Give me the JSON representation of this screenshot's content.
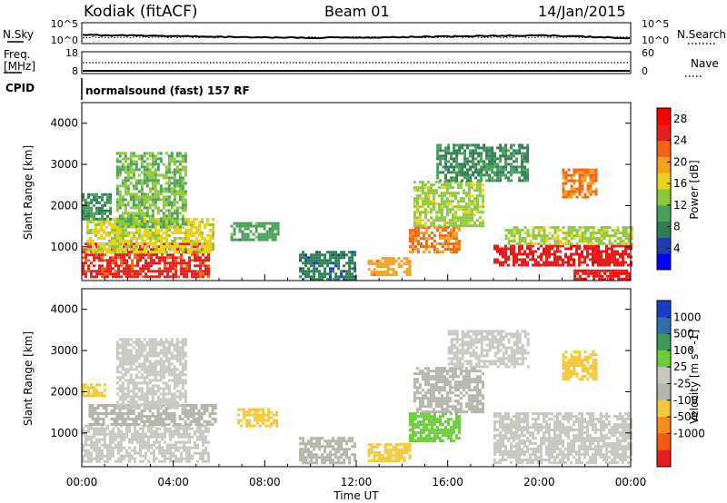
{
  "header": {
    "station": "Kodiak (fitACF)",
    "beam": "Beam 01",
    "date": "14/Jan/2015"
  },
  "top_strip": {
    "left_label": "N.Sky",
    "left_ticks": [
      "10^5",
      "10^0"
    ],
    "right_ticks": [
      "10^5",
      "10^0"
    ],
    "right_label": "N.Search"
  },
  "freq_strip": {
    "left_label_1": "Freq.",
    "left_label_2": "[MHz]",
    "left_ticks": [
      "18",
      "8"
    ],
    "right_ticks": [
      "60",
      "0"
    ],
    "right_label": "Nave"
  },
  "cpid_strip": {
    "label": "CPID",
    "text": "normalsound (fast) 157 RF"
  },
  "colors": {
    "power": [
      "#0000ff",
      "#1f3fa8",
      "#2e7d55",
      "#4aa05a",
      "#8cc83c",
      "#e8d21e",
      "#f5a01e",
      "#f06414",
      "#e61e1e",
      "#ff0000"
    ],
    "velocity": [
      "#1a3cc8",
      "#2e6eaa",
      "#3a9a5a",
      "#6ccc3c",
      "#c8c8c0",
      "#b4b4a8",
      "#f5c83c",
      "#f58c1e",
      "#f05a14",
      "#e81e1e"
    ]
  },
  "chart_data": [
    {
      "type": "heatmap",
      "title": "",
      "xlabel": "",
      "ylabel": "Slant Range [km]",
      "yticks": [
        "1000",
        "2000",
        "3000",
        "4000"
      ],
      "ylim": [
        180,
        4500
      ],
      "xticks": [
        "00:00",
        "04:00",
        "08:00",
        "12:00",
        "16:00",
        "20:00",
        "00:00"
      ],
      "colorbar": {
        "label": "Power [dB]",
        "ticks": [
          "4",
          "8",
          "12",
          "16",
          "20",
          "24",
          "28"
        ],
        "range": [
          0,
          30
        ]
      },
      "regions": [
        {
          "t0": 0.0,
          "t1": 5.5,
          "r0": 300,
          "r1": 1100,
          "value": 26
        },
        {
          "t0": 0.2,
          "t1": 5.8,
          "r0": 900,
          "r1": 1700,
          "value": 16
        },
        {
          "t0": 0.0,
          "t1": 1.2,
          "r0": 1700,
          "r1": 2300,
          "value": 8
        },
        {
          "t0": 1.5,
          "t1": 4.5,
          "r0": 1500,
          "r1": 3300,
          "value": 12
        },
        {
          "t0": 6.5,
          "t1": 8.6,
          "r0": 1200,
          "r1": 1600,
          "value": 10
        },
        {
          "t0": 9.5,
          "t1": 12.0,
          "r0": 200,
          "r1": 900,
          "value": 6
        },
        {
          "t0": 12.5,
          "t1": 14.3,
          "r0": 300,
          "r1": 750,
          "value": 20
        },
        {
          "t0": 14.3,
          "t1": 16.5,
          "r0": 900,
          "r1": 1500,
          "value": 22
        },
        {
          "t0": 14.5,
          "t1": 17.5,
          "r0": 1500,
          "r1": 2600,
          "value": 14
        },
        {
          "t0": 15.5,
          "t1": 19.5,
          "r0": 2600,
          "r1": 3500,
          "value": 8
        },
        {
          "t0": 18.0,
          "t1": 24.0,
          "r0": 550,
          "r1": 1050,
          "value": 27
        },
        {
          "t0": 18.5,
          "t1": 24.0,
          "r0": 1050,
          "r1": 1500,
          "value": 14
        },
        {
          "t0": 21.0,
          "t1": 22.5,
          "r0": 2200,
          "r1": 2900,
          "value": 22
        },
        {
          "t0": 21.5,
          "t1": 24.0,
          "r0": 200,
          "r1": 450,
          "value": 28
        }
      ]
    },
    {
      "type": "heatmap",
      "title": "",
      "xlabel": "Time UT",
      "ylabel": "Slant Range [km]",
      "yticks": [
        "1000",
        "2000",
        "3000",
        "4000"
      ],
      "ylim": [
        180,
        4500
      ],
      "xticks": [
        "00:00",
        "04:00",
        "08:00",
        "12:00",
        "16:00",
        "20:00",
        "00:00"
      ],
      "colorbar": {
        "label": "Velocity [m s^-1]",
        "ticks": [
          "1000",
          "500",
          "100",
          "25",
          "-25",
          "-100",
          "-500",
          "-1000"
        ]
      },
      "regions": [
        {
          "t0": 0.0,
          "t1": 5.5,
          "r0": 300,
          "r1": 1200,
          "value": 0
        },
        {
          "t0": 0.3,
          "t1": 5.8,
          "r0": 1200,
          "r1": 1700,
          "value": -50
        },
        {
          "t0": 0.0,
          "t1": 1.0,
          "r0": 1900,
          "r1": 2200,
          "value": -150
        },
        {
          "t0": 1.5,
          "t1": 4.5,
          "r0": 1600,
          "r1": 3300,
          "value": 10
        },
        {
          "t0": 6.8,
          "t1": 8.5,
          "r0": 1200,
          "r1": 1600,
          "value": -300
        },
        {
          "t0": 9.5,
          "t1": 12.0,
          "r0": 250,
          "r1": 900,
          "value": -40
        },
        {
          "t0": 12.5,
          "t1": 14.3,
          "r0": 350,
          "r1": 750,
          "value": -150
        },
        {
          "t0": 14.3,
          "t1": 16.5,
          "r0": 800,
          "r1": 1500,
          "value": 80
        },
        {
          "t0": 14.5,
          "t1": 17.5,
          "r0": 1500,
          "r1": 2600,
          "value": -90
        },
        {
          "t0": 16.0,
          "t1": 19.5,
          "r0": 2600,
          "r1": 3500,
          "value": 20
        },
        {
          "t0": 18.0,
          "t1": 24.0,
          "r0": 300,
          "r1": 1500,
          "value": 0
        },
        {
          "t0": 21.0,
          "t1": 22.5,
          "r0": 2300,
          "r1": 3000,
          "value": -400
        }
      ]
    }
  ]
}
